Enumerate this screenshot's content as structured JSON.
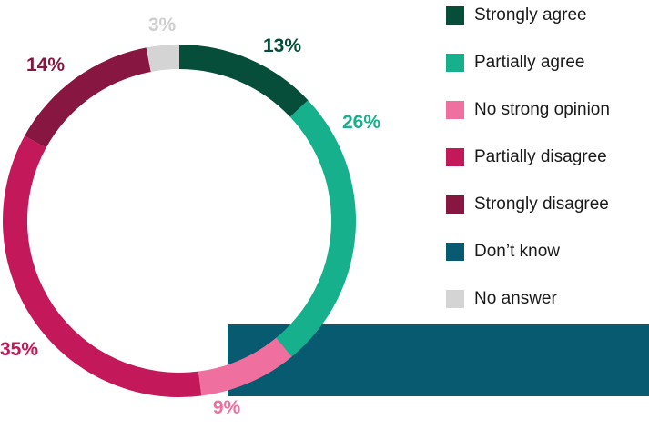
{
  "chart_data": {
    "type": "pie",
    "variant": "donut",
    "categories": [
      "Strongly agree",
      "Partially agree",
      "No strong opinion",
      "Partially disagree",
      "Strongly disagree",
      "Don’t know",
      "No answer"
    ],
    "values": [
      13,
      26,
      9,
      35,
      14,
      0,
      3
    ],
    "value_labels": [
      "13%",
      "26%",
      "9%",
      "35%",
      "14%",
      "",
      "3%"
    ],
    "colors": [
      "#064d3a",
      "#17b08c",
      "#ef6f9f",
      "#c3185a",
      "#871640",
      "#075a70",
      "#d4d4d4"
    ],
    "legend_position": "right",
    "title": "",
    "unit": "%"
  },
  "legend": {
    "items": [
      {
        "label": "Strongly agree",
        "color": "#064d3a"
      },
      {
        "label": "Partially agree",
        "color": "#17b08c"
      },
      {
        "label": "No strong opinion",
        "color": "#ef6f9f"
      },
      {
        "label": "Partially disagree",
        "color": "#c3185a"
      },
      {
        "label": "Strongly disagree",
        "color": "#871640"
      },
      {
        "label": "Don’t know",
        "color": "#075a70"
      },
      {
        "label": "No answer",
        "color": "#d4d4d4"
      }
    ]
  }
}
